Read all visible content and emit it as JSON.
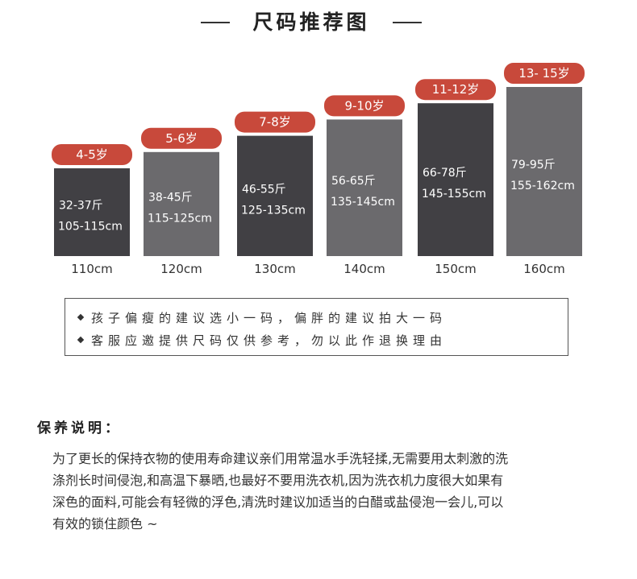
{
  "header": {
    "title": "尺码推荐图"
  },
  "chart_data": {
    "type": "bar",
    "title": "尺码推荐图",
    "categories": [
      "110cm",
      "120cm",
      "130cm",
      "140cm",
      "150cm",
      "160cm"
    ],
    "values": [
      110,
      120,
      130,
      140,
      150,
      160
    ],
    "ages": [
      "4-5岁",
      "5-6岁",
      "7-8岁",
      "9-10岁",
      "11-12岁",
      "13- 15岁"
    ],
    "weights": [
      "32-37斤",
      "38-45斤",
      "46-55斤",
      "56-65斤",
      "66-78斤",
      "79-95斤"
    ],
    "heights": [
      "105-115cm",
      "115-125cm",
      "125-135cm",
      "135-145cm",
      "145-155cm",
      "155-162cm"
    ],
    "ylim": [
      0,
      160
    ],
    "grid": false,
    "colors": {
      "bar_dark": "#414044",
      "bar_light": "#6b6a6d",
      "badge": "#c8493b",
      "badge_text": "#ffffff",
      "bar_text": "#ffffff",
      "axis_text": "#333333"
    }
  },
  "notes": [
    "孩子偏瘦的建议选小一码，偏胖的建议拍大一码",
    "客服应邀提供尺码仅供参考，勿以此作退换理由"
  ],
  "care": {
    "title": "保养说明：",
    "lines": [
      "为了更长的保持衣物的使用寿命建议亲们用常温水手洗轻揉,无需要用太刺激的洗",
      "涤剂长时间侵泡,和高温下暴晒,也最好不要用洗衣机,因为洗衣机力度很大如果有",
      "深色的面料,可能会有轻微的浮色,清洗时建议加适当的白醋或盐侵泡一会儿,可以",
      "有效的锁住颜色 ~"
    ]
  }
}
